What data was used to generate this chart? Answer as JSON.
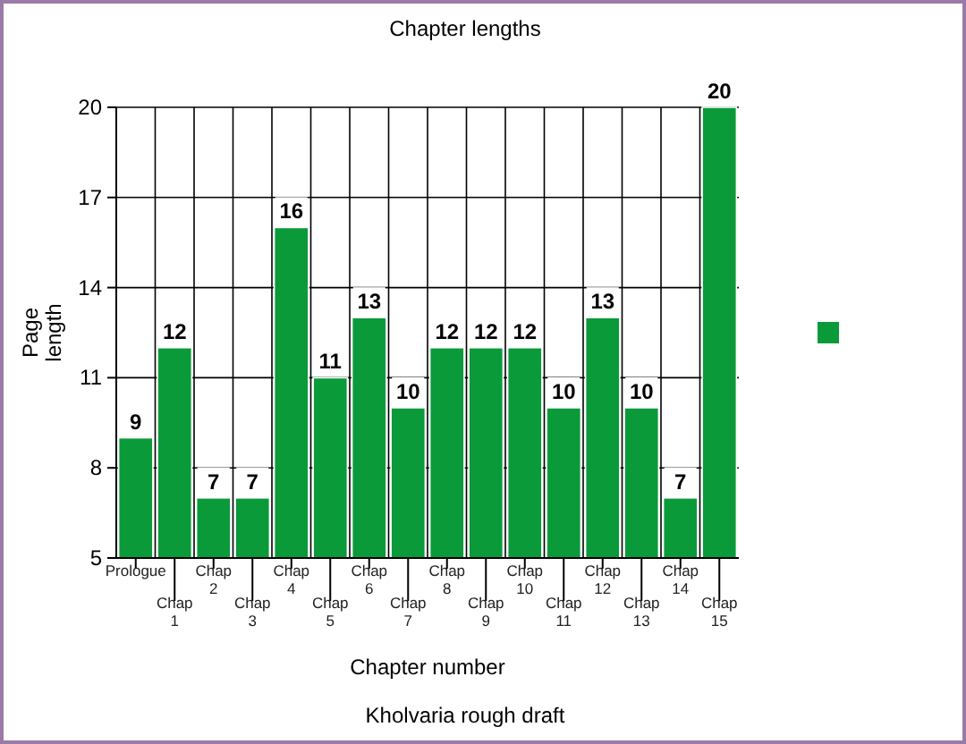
{
  "chart_data": {
    "type": "bar",
    "title": "Chapter lengths",
    "xlabel": "Chapter number",
    "ylabel": "Page length",
    "annotations": [
      "Kholvaria rough draft"
    ],
    "categories": [
      "Prologue",
      "Chap 1",
      "Chap 2",
      "Chap 3",
      "Chap 4",
      "Chap 5",
      "Chap 6",
      "Chap 7",
      "Chap 8",
      "Chap 9",
      "Chap 10",
      "Chap 11",
      "Chap 12",
      "Chap 13",
      "Chap 14",
      "Chap 15"
    ],
    "series": [
      {
        "color": "#0a9a3a",
        "values": [
          9,
          12,
          7,
          7,
          16,
          11,
          13,
          10,
          12,
          12,
          12,
          10,
          13,
          10,
          7,
          20
        ]
      }
    ],
    "ylim": [
      5,
      20
    ],
    "yticks": [
      5,
      8,
      11,
      14,
      17,
      20
    ],
    "grid": true,
    "data_labels": true
  }
}
